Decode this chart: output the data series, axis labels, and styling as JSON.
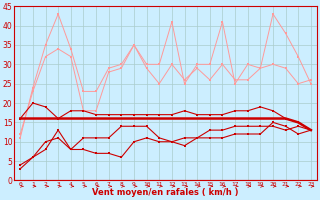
{
  "background_color": "#cceeff",
  "grid_color": "#aacccc",
  "line_color_dark": "#cc0000",
  "line_color_light": "#ff9999",
  "xlabel": "Vent moyen/en rafales ( km/h )",
  "ylim": [
    0,
    45
  ],
  "yticks": [
    0,
    5,
    10,
    15,
    20,
    25,
    30,
    35,
    40,
    45
  ],
  "x": [
    0,
    1,
    2,
    3,
    4,
    5,
    6,
    7,
    8,
    9,
    10,
    11,
    12,
    13,
    14,
    15,
    16,
    17,
    18,
    19,
    20,
    21,
    22,
    23
  ],
  "series": {
    "top_upper": [
      11,
      24,
      35,
      43,
      34,
      23,
      23,
      29,
      30,
      35,
      30,
      30,
      41,
      25,
      30,
      30,
      41,
      25,
      30,
      29,
      43,
      38,
      32,
      25
    ],
    "top_lower": [
      12,
      23,
      32,
      34,
      32,
      18,
      18,
      28,
      29,
      35,
      29,
      25,
      30,
      26,
      29,
      26,
      30,
      26,
      26,
      29,
      30,
      29,
      25,
      26
    ],
    "mid_upper": [
      16,
      20,
      19,
      16,
      18,
      18,
      17,
      17,
      17,
      17,
      17,
      17,
      17,
      18,
      17,
      17,
      17,
      18,
      18,
      19,
      18,
      16,
      15,
      13
    ],
    "mid_flat": [
      16,
      16,
      16,
      16,
      16,
      16,
      16,
      16,
      16,
      16,
      16,
      16,
      16,
      16,
      16,
      16,
      16,
      16,
      16,
      16,
      16,
      16,
      15,
      13
    ],
    "lower_a": [
      4,
      6,
      10,
      11,
      8,
      11,
      11,
      11,
      14,
      14,
      14,
      11,
      10,
      9,
      11,
      13,
      13,
      14,
      14,
      14,
      14,
      13,
      14,
      13
    ],
    "lower_b": [
      3,
      6,
      8,
      13,
      8,
      8,
      7,
      7,
      6,
      10,
      11,
      10,
      10,
      11,
      11,
      11,
      11,
      12,
      12,
      12,
      15,
      14,
      12,
      13
    ]
  }
}
